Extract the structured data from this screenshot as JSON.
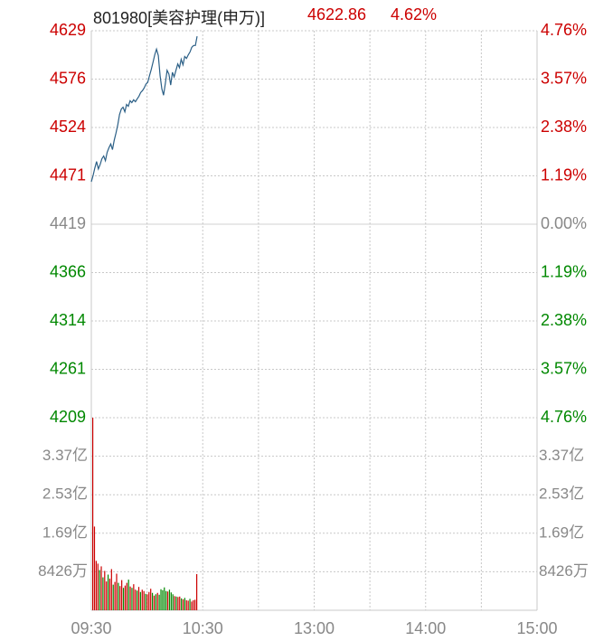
{
  "header": {
    "code_name": "801980[美容护理(申万)]",
    "price": "4622.86",
    "change_pct": "4.62%"
  },
  "colors": {
    "up": "#cc0000",
    "down": "#008800",
    "neutral": "#888888",
    "line": "#2b5f86",
    "grid": "#c8c8c8"
  },
  "chart_data": [
    {
      "type": "line",
      "title": "801980[美容护理(申万)]",
      "ylim": [
        4209,
        4629
      ],
      "y_ticks_left": [
        "4629",
        "4576",
        "4524",
        "4471",
        "4419",
        "4366",
        "4314",
        "4261",
        "4209"
      ],
      "y_ticks_right": [
        "4.76%",
        "3.57%",
        "2.38%",
        "1.19%",
        "0.00%",
        "1.19%",
        "2.38%",
        "3.57%",
        "4.76%"
      ],
      "tick_colors": [
        "up",
        "up",
        "up",
        "up",
        "neutral",
        "down",
        "down",
        "down",
        "down"
      ],
      "x_ticks": [
        "09:30",
        "10:30",
        "13:00",
        "14:00",
        "15:00"
      ],
      "x_range_minutes": [
        0,
        240
      ],
      "series": [
        {
          "x": [
            0,
            1,
            2,
            3,
            4,
            5,
            6,
            7,
            8,
            9,
            10,
            11,
            12,
            13,
            14,
            15,
            16,
            17,
            18,
            19,
            20,
            21,
            22,
            23,
            24,
            25,
            26,
            27,
            28,
            29,
            30,
            31,
            32,
            33,
            34,
            35,
            36,
            37,
            38,
            39,
            40,
            41,
            42,
            43,
            44,
            45,
            46,
            47,
            48,
            49,
            50,
            51,
            52,
            53,
            54,
            55,
            56,
            57,
            58,
            59,
            60
          ],
          "y": [
            4465,
            4472,
            4480,
            4487,
            4479,
            4484,
            4490,
            4493,
            4488,
            4497,
            4502,
            4506,
            4500,
            4510,
            4518,
            4527,
            4538,
            4544,
            4546,
            4541,
            4549,
            4547,
            4553,
            4551,
            4554,
            4552,
            4555,
            4558,
            4562,
            4564,
            4567,
            4571,
            4573,
            4580,
            4587,
            4595,
            4603,
            4609,
            4602,
            4580,
            4566,
            4559,
            4572,
            4586,
            4582,
            4570,
            4584,
            4579,
            4586,
            4593,
            4589,
            4598,
            4592,
            4601,
            4599,
            4603,
            4606,
            4611,
            4613,
            4613,
            4623
          ]
        }
      ]
    },
    {
      "type": "bar",
      "title": "",
      "ylim": [
        0,
        4.21
      ],
      "y_unit_note": "亿",
      "y_ticks_left": [
        "3.37亿",
        "2.53亿",
        "1.69亿",
        "8426万"
      ],
      "y_ticks_right": [
        "3.37亿",
        "2.53亿",
        "1.69亿",
        "8426万"
      ],
      "x_ticks": [
        "09:30",
        "10:30",
        "13:00",
        "14:00",
        "15:00"
      ],
      "values": [
        4.21,
        1.83,
        1.08,
        1.02,
        0.88,
        0.96,
        0.72,
        0.86,
        0.63,
        0.78,
        0.69,
        0.9,
        0.56,
        0.62,
        0.8,
        0.6,
        0.53,
        0.66,
        0.49,
        0.54,
        0.6,
        0.67,
        0.52,
        0.49,
        0.57,
        0.45,
        0.43,
        0.51,
        0.4,
        0.45,
        0.42,
        0.36,
        0.35,
        0.4,
        0.47,
        0.38,
        0.32,
        0.35,
        0.38,
        0.34,
        0.46,
        0.44,
        0.5,
        0.42,
        0.41,
        0.45,
        0.39,
        0.35,
        0.31,
        0.3,
        0.29,
        0.3,
        0.26,
        0.24,
        0.27,
        0.22,
        0.21,
        0.25,
        0.19,
        0.22,
        0.23,
        0.79
      ],
      "up_down": [
        1,
        1,
        1,
        1,
        0,
        1,
        0,
        1,
        1,
        0,
        1,
        1,
        0,
        1,
        1,
        0,
        1,
        1,
        0,
        1,
        1,
        0,
        1,
        0,
        1,
        1,
        0,
        1,
        0,
        1,
        1,
        0,
        1,
        1,
        1,
        0,
        1,
        0,
        1,
        0,
        0,
        0,
        0,
        0,
        1,
        0,
        0,
        0,
        1,
        0,
        1,
        1,
        0,
        1,
        0,
        1,
        1,
        0,
        1,
        1,
        1,
        1
      ]
    }
  ]
}
